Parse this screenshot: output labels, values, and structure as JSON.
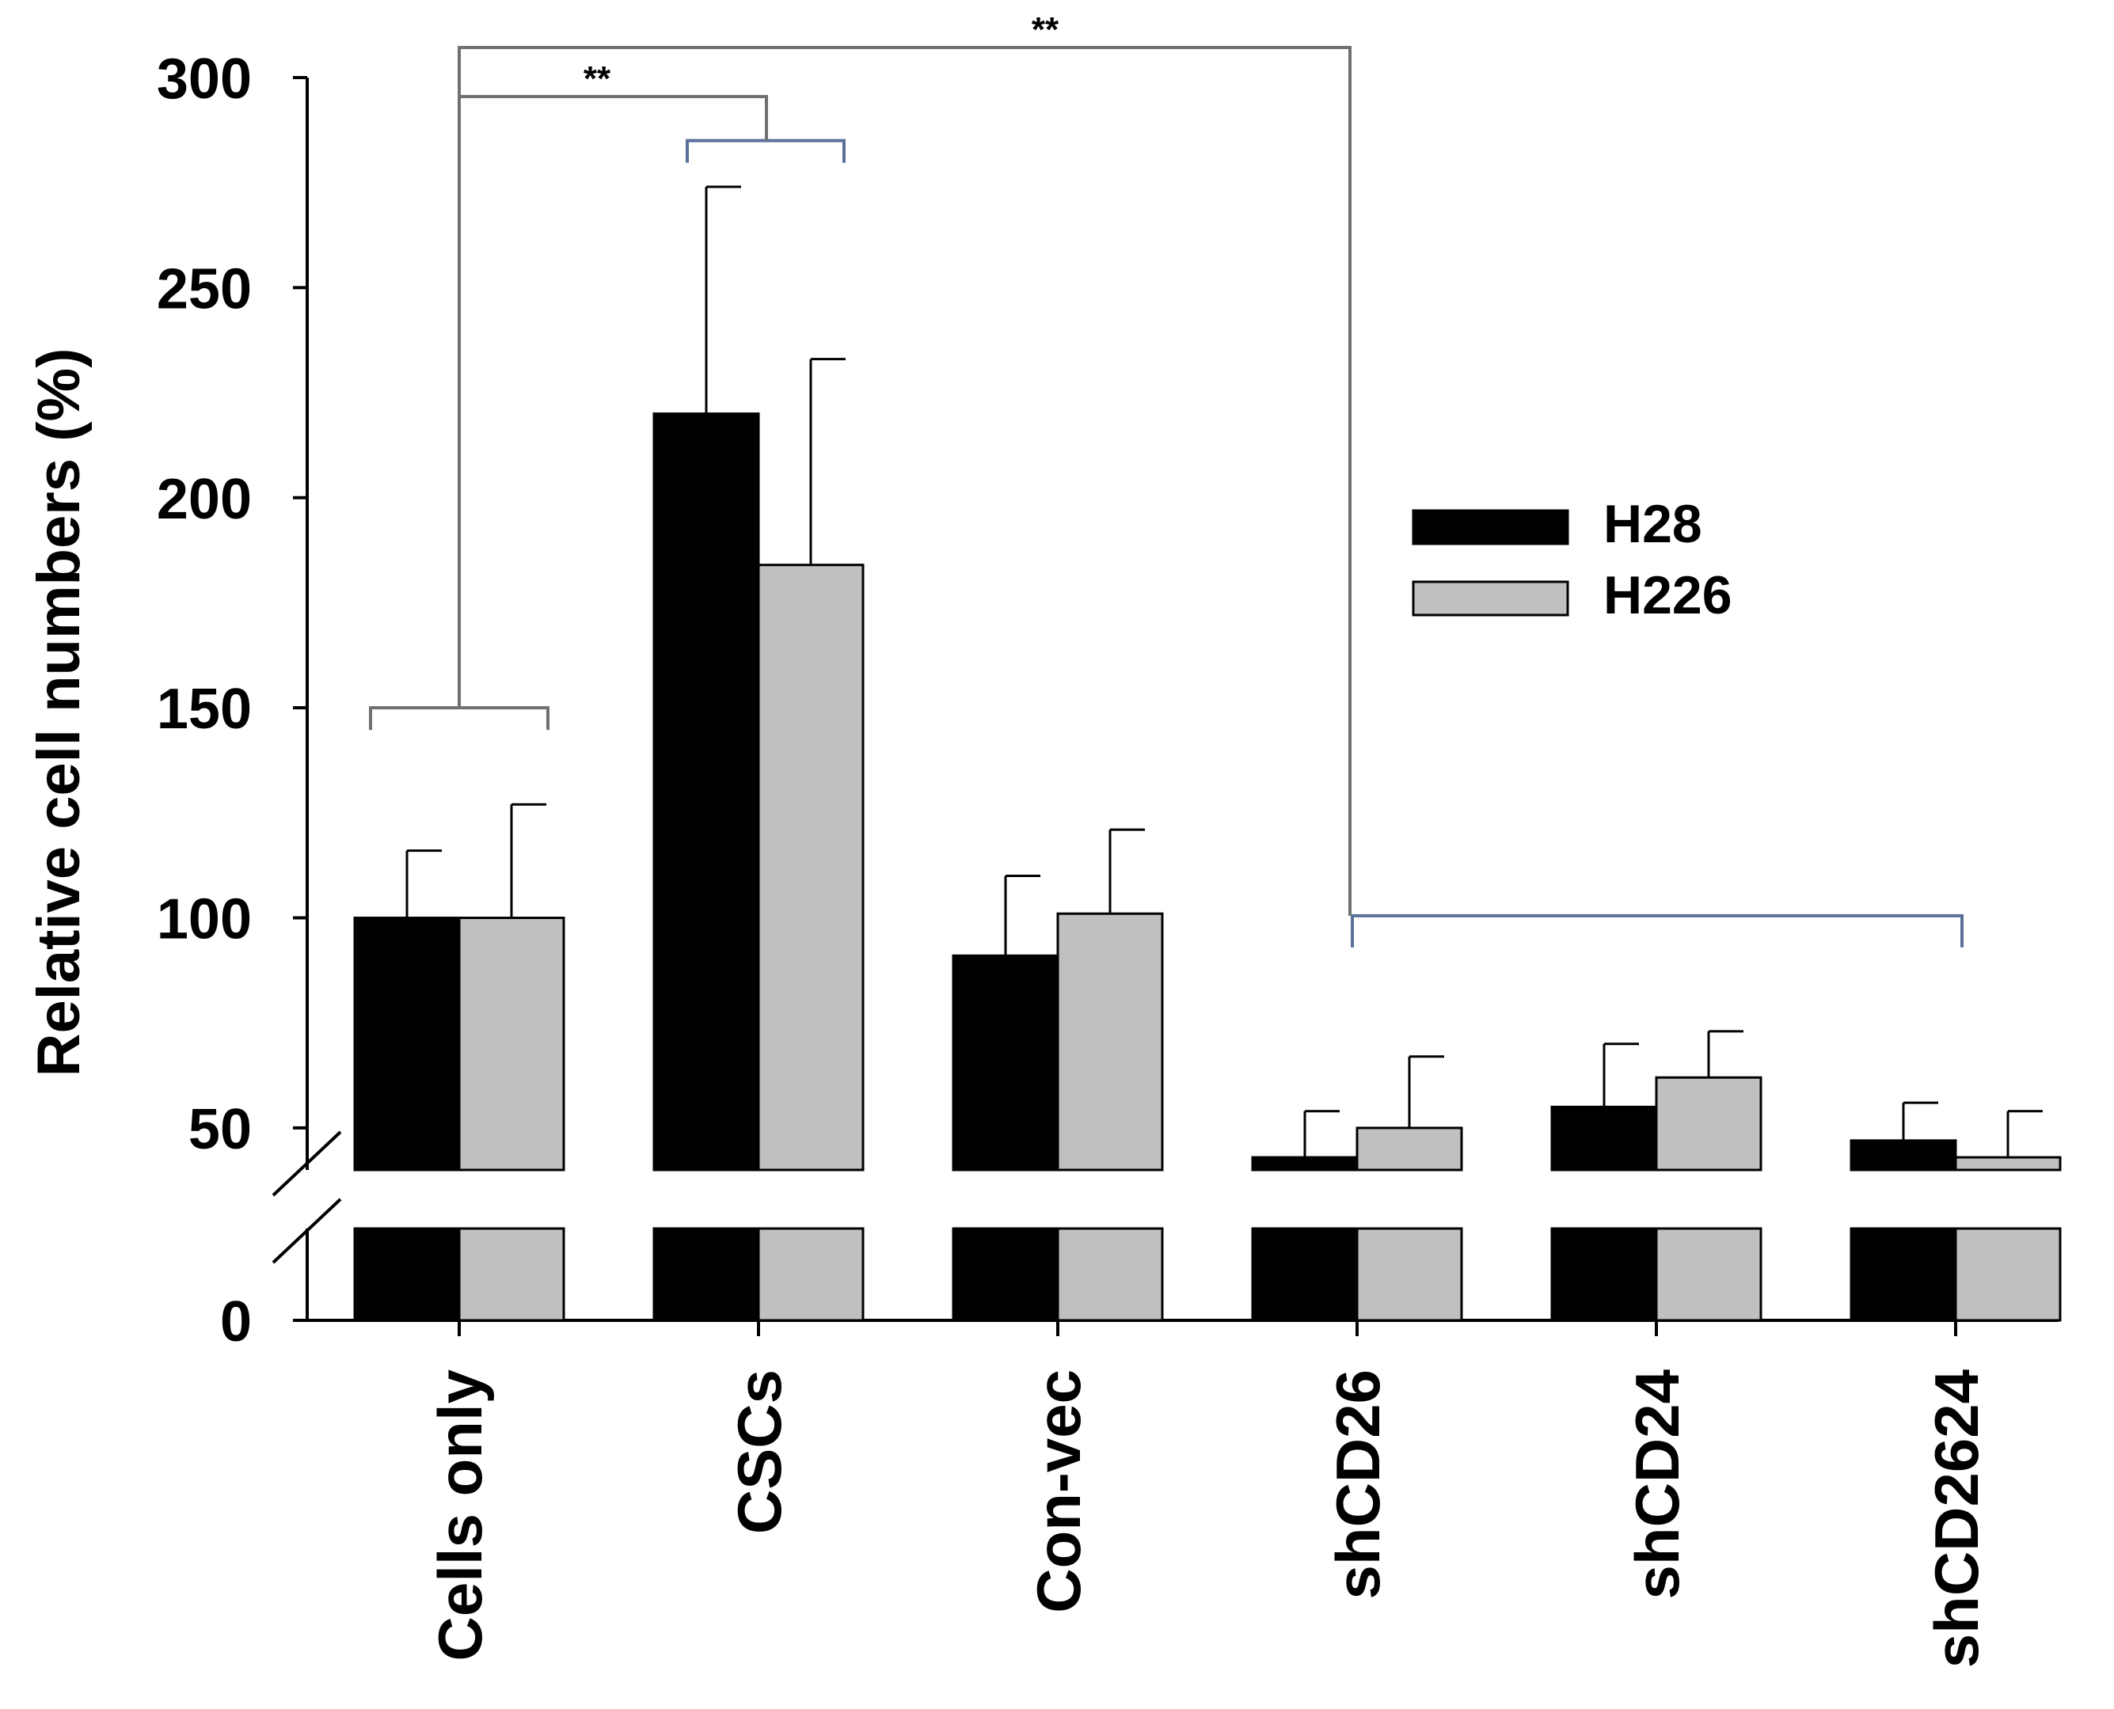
{
  "chart_data": {
    "type": "bar",
    "title": "",
    "xlabel": "",
    "ylabel": "Relative cell numbers (%)",
    "ylim": [
      0,
      300
    ],
    "y_ticks": [
      0,
      50,
      100,
      150,
      200,
      250,
      300
    ],
    "axis_break": true,
    "categories": [
      "Cells only",
      "CSCs",
      "Con-vec",
      "shCD26",
      "shCD24",
      "shCD2624"
    ],
    "series": [
      {
        "name": "H28",
        "color": "#000000",
        "values": [
          100,
          220,
          91,
          43,
          55,
          47
        ],
        "errors": [
          16,
          54,
          19,
          11,
          15,
          9
        ]
      },
      {
        "name": "H226",
        "color": "#c0c0c0",
        "values": [
          100,
          184,
          101,
          50,
          62,
          43
        ],
        "errors": [
          27,
          49,
          20,
          17,
          11,
          11
        ]
      }
    ],
    "legend": {
      "position": "right",
      "entries": [
        "H28",
        "H226"
      ]
    },
    "annotations": [
      {
        "text": "**",
        "from": "Cells only",
        "to": "CSCs"
      },
      {
        "text": "**",
        "from": "Cells only",
        "to": "shCD26–shCD2624"
      }
    ]
  }
}
